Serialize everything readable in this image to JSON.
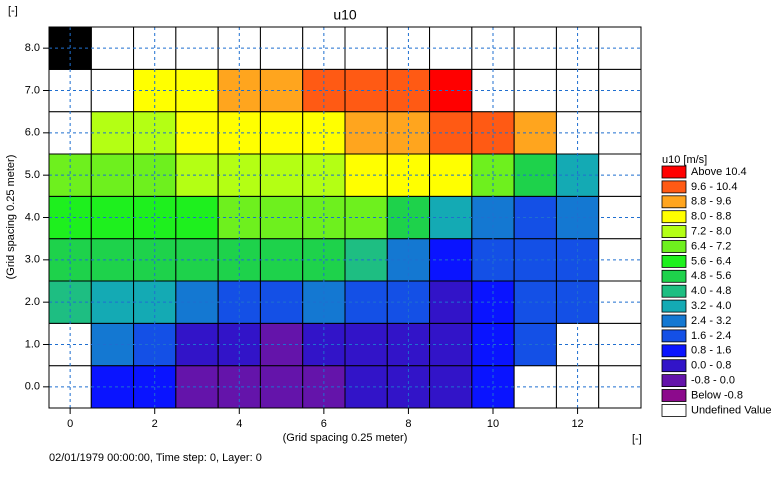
{
  "chart_data": {
    "type": "heatmap",
    "title": "u10",
    "x_label": "(Grid spacing 0.25 meter)",
    "y_label": "(Grid spacing 0.25 meter)",
    "x_unit": "[-]",
    "y_unit": "[-]",
    "footer": "02/01/1979 00:00:00, Time step: 0, Layer: 0",
    "x": [
      0,
      1,
      2,
      3,
      4,
      5,
      6,
      7,
      8,
      9,
      10,
      11,
      12,
      13
    ],
    "y": [
      0,
      1,
      2,
      3,
      4,
      5,
      6,
      7,
      8
    ],
    "z": [
      [
        null,
        1.2,
        1.2,
        -0.4,
        -0.4,
        -0.4,
        -0.4,
        0.4,
        0.4,
        0.4,
        1.2,
        null,
        null,
        null
      ],
      [
        null,
        2.8,
        2.0,
        0.4,
        0.4,
        -0.4,
        0.4,
        0.4,
        0.4,
        0.4,
        1.2,
        2.0,
        null,
        null
      ],
      [
        4.4,
        3.6,
        3.6,
        2.8,
        2.0,
        2.0,
        2.8,
        2.0,
        2.0,
        0.4,
        1.2,
        2.0,
        2.0,
        null
      ],
      [
        5.2,
        5.2,
        5.2,
        5.2,
        5.2,
        5.2,
        5.2,
        4.4,
        2.8,
        1.2,
        2.0,
        2.0,
        2.0,
        null
      ],
      [
        6.0,
        6.0,
        6.0,
        6.0,
        6.8,
        6.8,
        6.8,
        6.8,
        5.2,
        3.6,
        2.8,
        2.0,
        2.8,
        null
      ],
      [
        6.8,
        6.8,
        6.8,
        7.6,
        7.6,
        7.6,
        7.6,
        8.4,
        8.4,
        8.4,
        6.8,
        5.2,
        3.6,
        null
      ],
      [
        null,
        7.6,
        7.6,
        8.4,
        8.4,
        8.4,
        8.4,
        9.2,
        9.2,
        10.0,
        10.0,
        9.2,
        null,
        null
      ],
      [
        null,
        null,
        8.4,
        8.4,
        9.2,
        9.2,
        10.0,
        10.0,
        10.0,
        10.8,
        null,
        null,
        null,
        null
      ],
      [
        null,
        null,
        null,
        null,
        null,
        null,
        null,
        null,
        null,
        null,
        null,
        null,
        null,
        null
      ]
    ],
    "masked": [
      {
        "x": 0,
        "y": 8
      }
    ],
    "masked_color": "#000000",
    "xlim": [
      -0.5,
      13.5
    ],
    "ylim": [
      -0.5,
      8.5
    ],
    "xticks": [
      0,
      2,
      4,
      6,
      8,
      10,
      12
    ],
    "yticks": [
      {
        "value": 0,
        "label": "0.0"
      },
      {
        "value": 1,
        "label": "1.0"
      },
      {
        "value": 2,
        "label": "2.0"
      },
      {
        "value": 3,
        "label": "3.0"
      },
      {
        "value": 4,
        "label": "4.0"
      },
      {
        "value": 5,
        "label": "5.0"
      },
      {
        "value": 6,
        "label": "6.0"
      },
      {
        "value": 7,
        "label": "7.0"
      },
      {
        "value": 8,
        "label": "8.0"
      }
    ],
    "grid": true,
    "grid_color": "#1f6fd0",
    "levels": [
      -0.8,
      0.0,
      0.8,
      1.6,
      2.4,
      3.2,
      4.0,
      4.8,
      5.6,
      6.4,
      7.2,
      8.0,
      8.8,
      9.6,
      10.4
    ],
    "legend": {
      "title": "u10 [m/s]",
      "position": "right",
      "entries": [
        {
          "label": "Above 10.4",
          "color": "#ff0000"
        },
        {
          "label": "9.6 - 10.4",
          "color": "#ff5a14"
        },
        {
          "label": "8.8 - 9.6",
          "color": "#ffa51e"
        },
        {
          "label": "8.0 - 8.8",
          "color": "#ffff00"
        },
        {
          "label": "7.2 - 8.0",
          "color": "#b4ff14"
        },
        {
          "label": "6.4 - 7.2",
          "color": "#6ef01e"
        },
        {
          "label": "5.6 - 6.4",
          "color": "#1ef01e"
        },
        {
          "label": "4.8 - 5.6",
          "color": "#1ed24b"
        },
        {
          "label": "4.0 - 4.8",
          "color": "#1ebe82"
        },
        {
          "label": "3.2 - 4.0",
          "color": "#14aab4"
        },
        {
          "label": "2.4 - 3.2",
          "color": "#1478d2"
        },
        {
          "label": "1.6 - 2.4",
          "color": "#1450e6"
        },
        {
          "label": "0.8 - 1.6",
          "color": "#0a14ff"
        },
        {
          "label": "0.0 - 0.8",
          "color": "#3214c8"
        },
        {
          "label": "-0.8 - 0.0",
          "color": "#6414aa"
        },
        {
          "label": "Below -0.8",
          "color": "#8c0a8c"
        },
        {
          "label": "Undefined Value",
          "color": "#ffffff"
        }
      ]
    }
  }
}
